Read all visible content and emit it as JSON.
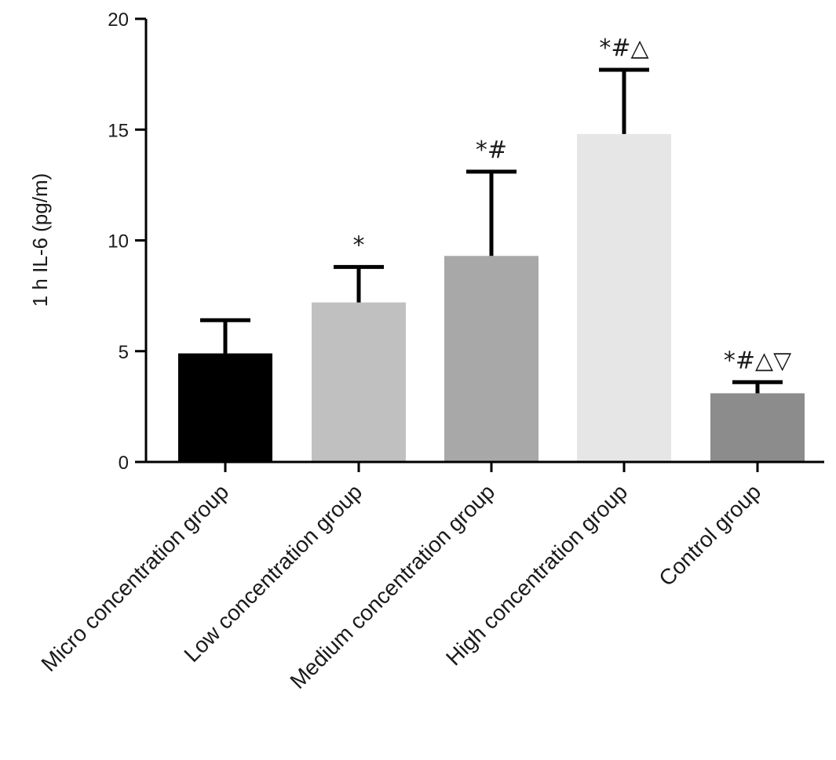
{
  "chart_data": {
    "type": "bar",
    "title": "",
    "xlabel": "",
    "ylabel": "1 h IL-6 (pg/m)",
    "ylim": [
      0,
      20
    ],
    "yticks": [
      0,
      5,
      10,
      15,
      20
    ],
    "categories": [
      "Micro concentration group",
      "Low concentration group",
      "Medium concentration group",
      "High concentration group",
      "Control group"
    ],
    "values": [
      4.9,
      7.2,
      9.3,
      14.8,
      3.1
    ],
    "errors": [
      1.5,
      1.6,
      3.8,
      2.9,
      0.5
    ],
    "annotations": [
      "",
      "*",
      "*#",
      "*#△",
      "*#△▽"
    ],
    "colors": [
      "#000000",
      "#c0c0c0",
      "#a8a8a8",
      "#e6e6e6",
      "#8c8c8c"
    ],
    "grid": false,
    "legend": "none"
  }
}
